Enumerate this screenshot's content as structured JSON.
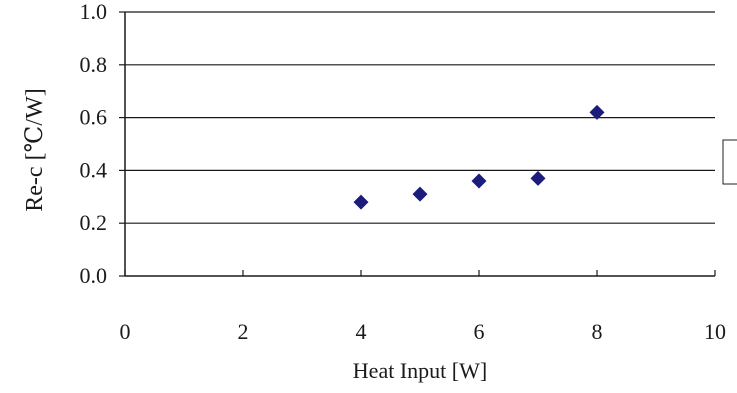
{
  "chart_data": {
    "type": "scatter",
    "title": "",
    "xlabel": "Heat Input [W]",
    "ylabel": "Re-c [℃/W]",
    "xlim": [
      0,
      10
    ],
    "ylim": [
      0.0,
      1.0
    ],
    "x_ticks": [
      0,
      2,
      4,
      6,
      8,
      10
    ],
    "x_tick_labels": [
      "0",
      "2",
      "4",
      "6",
      "8",
      "10"
    ],
    "y_ticks": [
      0.0,
      0.2,
      0.4,
      0.6,
      0.8,
      1.0
    ],
    "y_tick_labels": [
      "0.0",
      "0.2",
      "0.4",
      "0.6",
      "0.8",
      "1.0"
    ],
    "grid": "horizontal",
    "legend": "none",
    "series": [
      {
        "marker": "diamond",
        "color": "#1c1c7a",
        "points": [
          {
            "x": 4,
            "y": 0.28
          },
          {
            "x": 5,
            "y": 0.31
          },
          {
            "x": 6,
            "y": 0.36
          },
          {
            "x": 7,
            "y": 0.37
          },
          {
            "x": 8,
            "y": 0.62
          }
        ]
      }
    ]
  }
}
